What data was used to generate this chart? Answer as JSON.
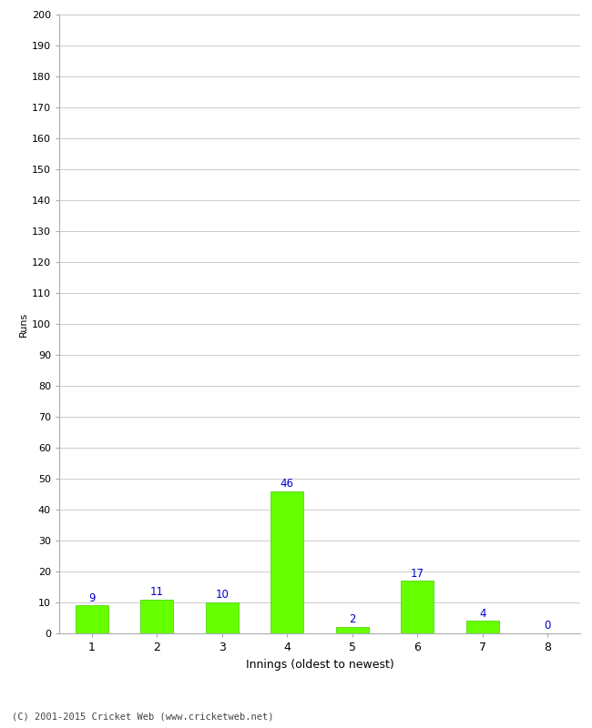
{
  "categories": [
    1,
    2,
    3,
    4,
    5,
    6,
    7,
    8
  ],
  "values": [
    9,
    11,
    10,
    46,
    2,
    17,
    4,
    0
  ],
  "bar_color": "#66ff00",
  "bar_edge_color": "#44cc00",
  "label_color": "#0000cc",
  "xlabel": "Innings (oldest to newest)",
  "ylabel": "Runs",
  "ylim": [
    0,
    200
  ],
  "yticks": [
    0,
    10,
    20,
    30,
    40,
    50,
    60,
    70,
    80,
    90,
    100,
    110,
    120,
    130,
    140,
    150,
    160,
    170,
    180,
    190,
    200
  ],
  "footer": "(C) 2001-2015 Cricket Web (www.cricketweb.net)",
  "background_color": "#ffffff",
  "grid_color": "#cccccc"
}
